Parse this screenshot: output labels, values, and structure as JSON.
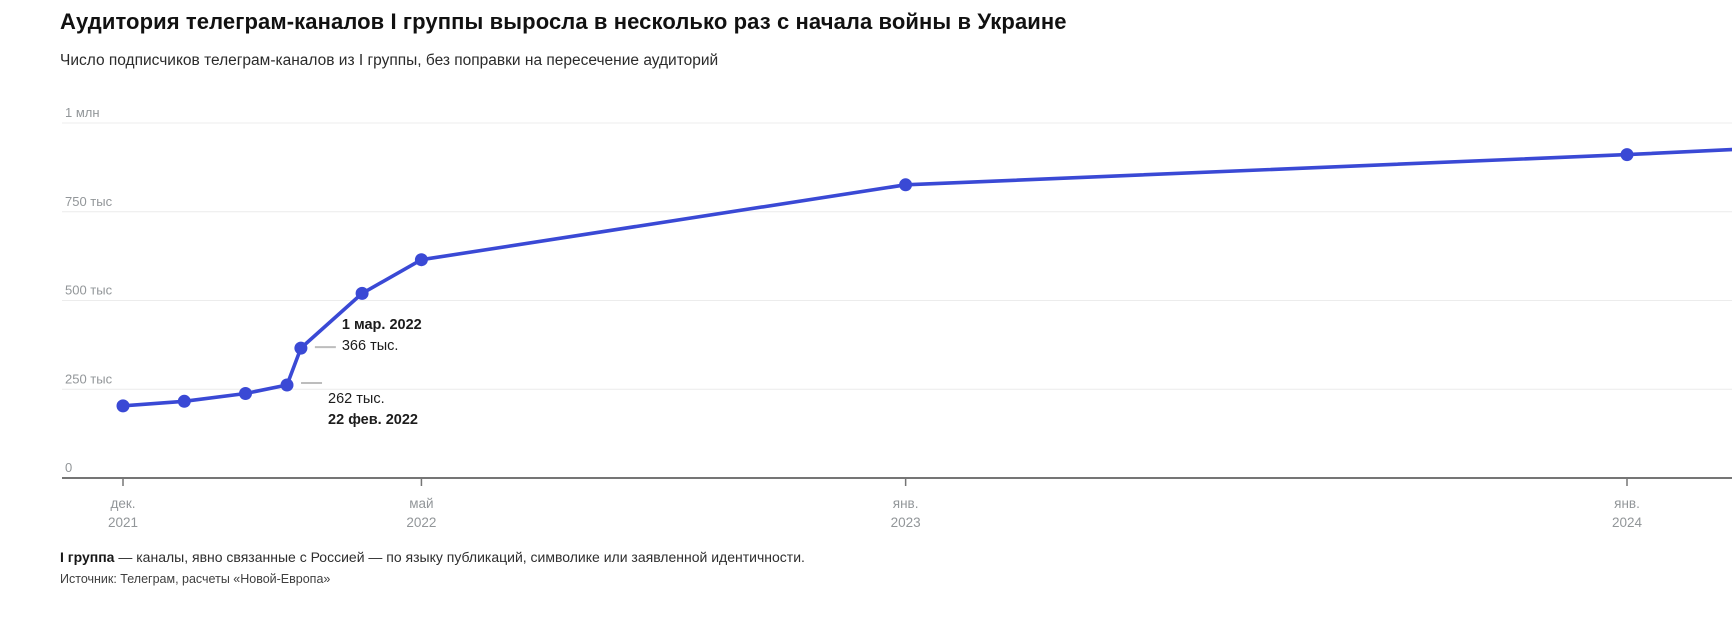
{
  "header": {
    "title": "Аудитория телеграм-каналов I группы выросла в несколько раз с начала войны в Украине",
    "subtitle": "Число подписчиков телеграм-каналов из I группы, без поправки на пересечение аудиторий"
  },
  "footer": {
    "note_bold": "I группа",
    "note_rest": " — каналы, явно связанные с Россией — по языку публикаций, символике или заявленной идентичности.",
    "source": "Источник: Телеграм, расчеты «Новой-Европа»"
  },
  "colors": {
    "line": "#3a49d5",
    "point": "#3a49d5",
    "grid": "#ececec",
    "axis": "#757575",
    "tick_label": "#929699",
    "annotation_dash": "#bdbdbd",
    "annotation_text": "#1c1c1c"
  },
  "chart_data": {
    "type": "line",
    "title": "Аудитория телеграм-каналов I группы выросла в несколько раз с начала войны в Украине",
    "subtitle": "Число подписчиков телеграм-каналов из I группы, без поправки на пересечение аудиторий",
    "xlabel": "",
    "ylabel": "Число подписчиков",
    "ylim": [
      0,
      1000000
    ],
    "x_domain": [
      "2021-12-01",
      "2024-02-23"
    ],
    "grid": true,
    "legend": "none",
    "y_ticks": [
      {
        "value": 1000000,
        "label": "1 млн"
      },
      {
        "value": 750000,
        "label": "750 тыс"
      },
      {
        "value": 500000,
        "label": "500 тыс"
      },
      {
        "value": 250000,
        "label": "250 тыс"
      },
      {
        "value": 0,
        "label": "0"
      }
    ],
    "x_ticks": [
      {
        "date": "2021-12-01",
        "line1": "дек.",
        "line2": "2021"
      },
      {
        "date": "2022-05-01",
        "line1": "май",
        "line2": "2022"
      },
      {
        "date": "2023-01-01",
        "line1": "янв.",
        "line2": "2023"
      },
      {
        "date": "2024-01-01",
        "line1": "янв.",
        "line2": "2024"
      }
    ],
    "series": [
      {
        "name": "I группа",
        "points": [
          {
            "date": "2021-12-01",
            "value": 203000
          },
          {
            "date": "2022-01-01",
            "value": 216000
          },
          {
            "date": "2022-02-01",
            "value": 238000
          },
          {
            "date": "2022-02-22",
            "value": 262000
          },
          {
            "date": "2022-03-01",
            "value": 366000
          },
          {
            "date": "2022-04-01",
            "value": 520000
          },
          {
            "date": "2022-05-01",
            "value": 615000
          },
          {
            "date": "2023-01-01",
            "value": 826000
          },
          {
            "date": "2024-01-01",
            "value": 911000
          },
          {
            "date": "2024-02-23",
            "value": 925000,
            "marker": false
          }
        ]
      }
    ],
    "annotations": [
      {
        "date": "2022-03-01",
        "placement": "above",
        "lines": [
          {
            "text": "1 мар. 2022",
            "bold": true
          },
          {
            "text": "366 тыс.",
            "bold": false
          }
        ]
      },
      {
        "date": "2022-02-22",
        "placement": "below",
        "lines": [
          {
            "text": "262 тыс.",
            "bold": false
          },
          {
            "text": "22 фев. 2022",
            "bold": true
          }
        ]
      }
    ]
  }
}
